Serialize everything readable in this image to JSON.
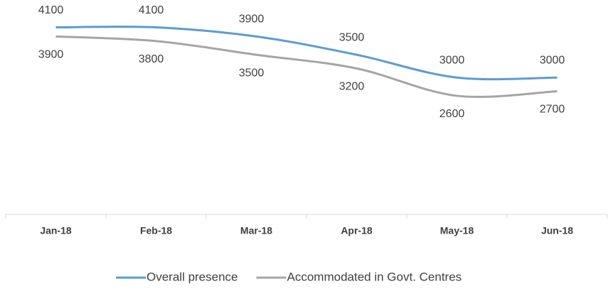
{
  "chart_data": {
    "type": "line",
    "categories": [
      "Jan-18",
      "Feb-18",
      "Mar-18",
      "Apr-18",
      "May-18",
      "Jun-18"
    ],
    "series": [
      {
        "name": "Overall presence",
        "color": "#5b9bd5",
        "values": [
          4100,
          4100,
          3900,
          3500,
          3000,
          3000
        ]
      },
      {
        "name": "Accommodated in Govt. Centres",
        "color": "#a5a5a5",
        "values": [
          3900,
          3800,
          3500,
          3200,
          2600,
          2700
        ]
      }
    ],
    "ylim": [
      0,
      4700
    ],
    "smooth": true,
    "legend": "bottom"
  }
}
